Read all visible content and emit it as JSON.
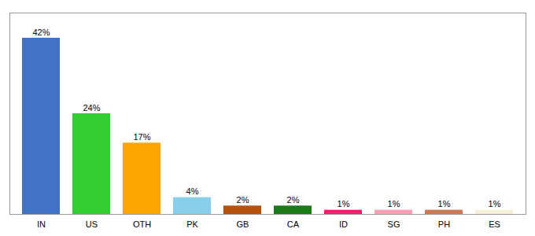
{
  "chart_data": {
    "type": "bar",
    "categories": [
      "IN",
      "US",
      "OTH",
      "PK",
      "GB",
      "CA",
      "ID",
      "SG",
      "PH",
      "ES"
    ],
    "values": [
      42,
      24,
      17,
      4,
      2,
      2,
      1,
      1,
      1,
      1
    ],
    "value_labels": [
      "42%",
      "24%",
      "17%",
      "4%",
      "2%",
      "2%",
      "1%",
      "1%",
      "1%",
      "1%"
    ],
    "colors": [
      "#4472c4",
      "#33cc33",
      "#ffa500",
      "#87ceeb",
      "#b8520a",
      "#1a7a1a",
      "#ff1a6d",
      "#ff9eb5",
      "#cc7755",
      "#f5f0dc"
    ],
    "ylim": [
      0,
      48
    ],
    "data_labels": true,
    "tick_labels": "x",
    "grid": false
  }
}
